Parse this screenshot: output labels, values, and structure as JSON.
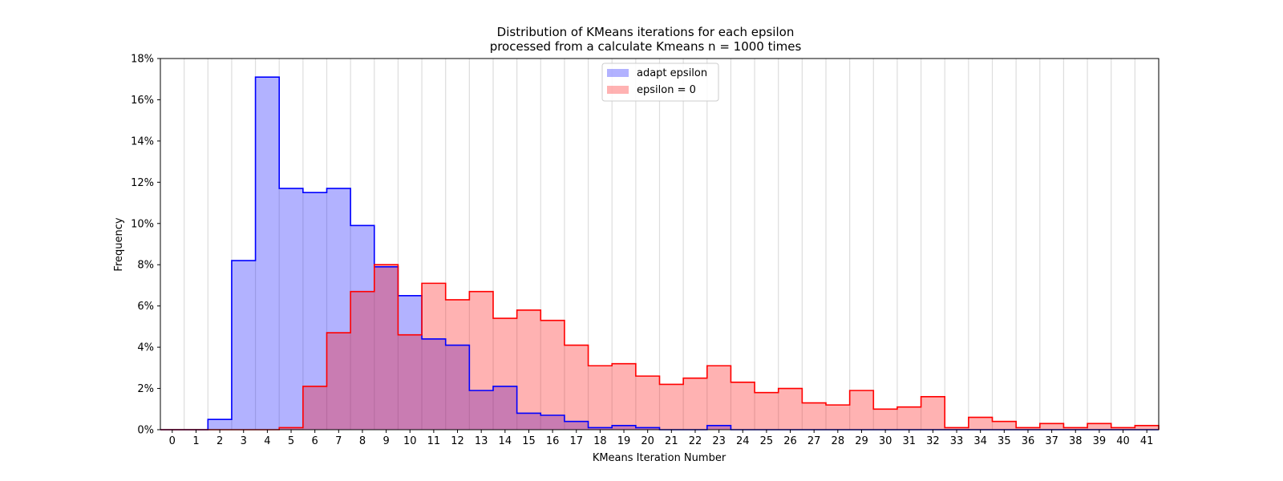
{
  "chart_data": {
    "type": "histogram",
    "title_line1": "Distribution of KMeans iterations for each epsilon",
    "title_line2": "processed from a calculate Kmeans n = 1000 times",
    "xlabel": "KMeans Iteration Number",
    "ylabel": "Frequency",
    "xlim": [
      0,
      42
    ],
    "ylim": [
      0,
      18
    ],
    "y_ticks": [
      "0%",
      "2%",
      "4%",
      "6%",
      "8%",
      "10%",
      "12%",
      "14%",
      "16%",
      "18%"
    ],
    "x_ticks": [
      "0",
      "1",
      "2",
      "3",
      "4",
      "5",
      "6",
      "7",
      "8",
      "9",
      "10",
      "11",
      "12",
      "13",
      "14",
      "15",
      "16",
      "17",
      "18",
      "19",
      "20",
      "21",
      "22",
      "23",
      "24",
      "25",
      "26",
      "27",
      "28",
      "29",
      "30",
      "31",
      "32",
      "33",
      "34",
      "35",
      "36",
      "37",
      "38",
      "39",
      "40",
      "41"
    ],
    "grid": "vertical",
    "legend_position": "top-center",
    "series": [
      {
        "name": "adapt epsilon",
        "edge_color": "#0000ff",
        "fill_color": "#0000ff",
        "fill_opacity": 0.3,
        "x": [
          0,
          1,
          2,
          3,
          4,
          5,
          6,
          7,
          8,
          9,
          10,
          11,
          12,
          13,
          14,
          15,
          16,
          17,
          18,
          19,
          20,
          21,
          22,
          23,
          24,
          25,
          26,
          27,
          28,
          29,
          30,
          31,
          32,
          33,
          34,
          35,
          36,
          37,
          38,
          39,
          40,
          41
        ],
        "values": [
          0,
          0,
          0.5,
          8.2,
          17.1,
          11.7,
          11.5,
          11.7,
          9.9,
          7.9,
          6.5,
          4.4,
          4.1,
          1.9,
          2.1,
          0.8,
          0.7,
          0.4,
          0.1,
          0.2,
          0.1,
          0,
          0,
          0.2,
          0,
          0,
          0,
          0,
          0,
          0,
          0,
          0,
          0,
          0,
          0,
          0,
          0,
          0,
          0,
          0,
          0,
          0
        ]
      },
      {
        "name": "epsilon = 0",
        "edge_color": "#ff0000",
        "fill_color": "#ff0000",
        "fill_opacity": 0.3,
        "x": [
          0,
          1,
          2,
          3,
          4,
          5,
          6,
          7,
          8,
          9,
          10,
          11,
          12,
          13,
          14,
          15,
          16,
          17,
          18,
          19,
          20,
          21,
          22,
          23,
          24,
          25,
          26,
          27,
          28,
          29,
          30,
          31,
          32,
          33,
          34,
          35,
          36,
          37,
          38,
          39,
          40,
          41
        ],
        "values": [
          0,
          0,
          0,
          0,
          0,
          0.1,
          2.1,
          4.7,
          6.7,
          8.0,
          4.6,
          7.1,
          6.3,
          6.7,
          5.4,
          5.8,
          5.3,
          4.1,
          3.1,
          3.2,
          2.6,
          2.2,
          2.5,
          3.1,
          2.3,
          1.8,
          2.0,
          1.3,
          1.2,
          1.9,
          1.0,
          1.1,
          1.6,
          0.1,
          0.6,
          0.4,
          0.1,
          0.3,
          0.1,
          0.3,
          0.1,
          0.2
        ]
      }
    ]
  }
}
